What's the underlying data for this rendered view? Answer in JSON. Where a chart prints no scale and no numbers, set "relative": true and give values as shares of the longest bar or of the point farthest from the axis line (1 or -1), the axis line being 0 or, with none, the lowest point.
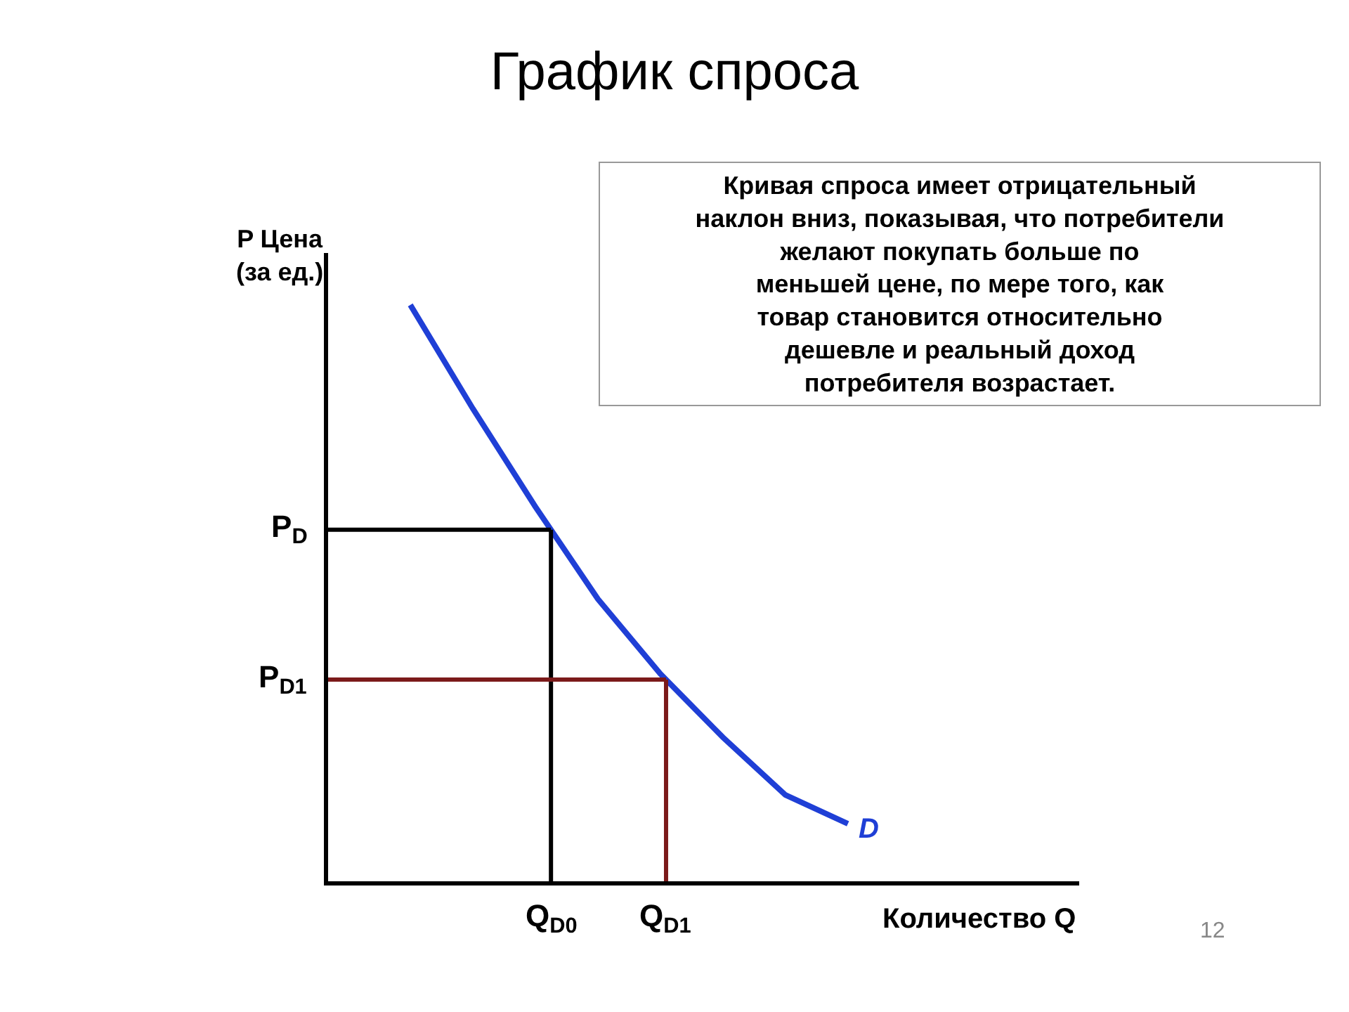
{
  "chart_data": {
    "type": "line",
    "relative": true,
    "title": "График спроса",
    "xlabel": "Количество Q",
    "ylabel": "P Цена\n(за ед.)",
    "categories": [
      null,
      null,
      null,
      null,
      null,
      null,
      null,
      null
    ],
    "series": [
      {
        "name": "D",
        "color": "#1f3fd6",
        "values": [
          1,
          0.82,
          0.65,
          0.49,
          0.36,
          0.25,
          0.15,
          0.1
        ]
      }
    ],
    "ref_lines": [
      {
        "axis": "y",
        "value": 0.61,
        "label": "P$_{D}$",
        "color": "#000000"
      },
      {
        "axis": "y",
        "value": 0.35,
        "label": "P$_{D1}$",
        "color": "#7b1a1a"
      }
    ],
    "annotations": [
      "Q$_{D0}$",
      "Q$_{D1}$",
      "Кривая спроса имеет отрицательный\nнаклон вниз, показывая, что потребители\nжелают покупать больше по\nменьшей цене, по мере того, как\nтовар становится относительно\nдешевле и реальный доход\nпотребителя возрастает.",
      "12"
    ],
    "legend": false,
    "marker": "none",
    "line_style": "solid"
  }
}
